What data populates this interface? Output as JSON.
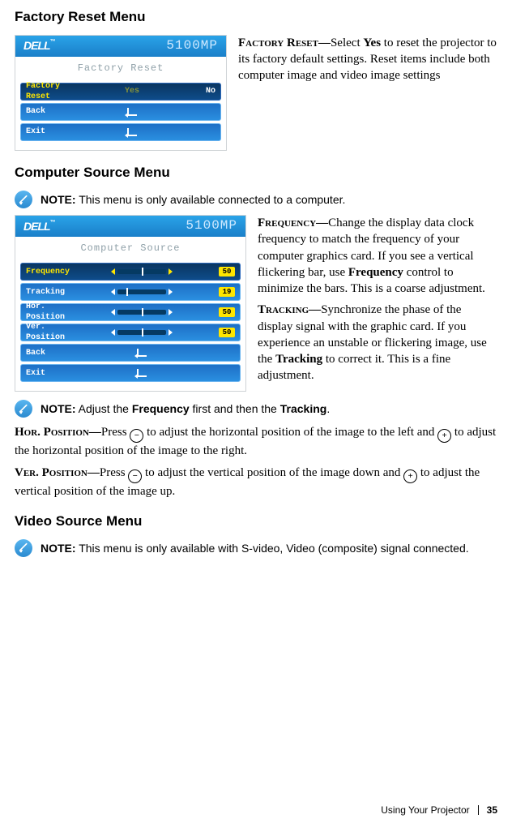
{
  "headings": {
    "factory_reset_menu": "Factory Reset Menu",
    "computer_source_menu": "Computer Source Menu",
    "video_source_menu": "Video Source Menu"
  },
  "projector": {
    "logo": "DELL",
    "model": "5100MP"
  },
  "factory_menu": {
    "title": "Factory Reset",
    "rows": {
      "reset": {
        "label": "Factory Reset",
        "yes": "Yes",
        "no": "No"
      },
      "back": "Back",
      "exit": "Exit"
    }
  },
  "computer_menu": {
    "title": "Computer Source",
    "rows": {
      "frequency": {
        "label": "Frequency",
        "value": "50",
        "slider_pos_pct": 50
      },
      "tracking": {
        "label": "Tracking",
        "value": "19",
        "slider_pos_pct": 19
      },
      "hor": {
        "label": "Hor. Position",
        "value": "50",
        "slider_pos_pct": 50
      },
      "ver": {
        "label": "Ver. Position",
        "value": "50",
        "slider_pos_pct": 50
      },
      "back": "Back",
      "exit": "Exit"
    }
  },
  "text": {
    "factory_reset_label": "Factory Reset—",
    "factory_reset_desc": "Select Yes to reset the projector to its factory default settings. Reset items include both computer image and video image settings",
    "factory_reset_desc_pre": "Select ",
    "factory_reset_desc_yes": "Yes",
    "factory_reset_desc_post": " to reset the projector to its factory default settings. Reset items include both computer image and video image settings",
    "note_label": "NOTE:",
    "note_computer": " This menu is only available connected to a computer.",
    "frequency_label": "Frequency—",
    "frequency_desc_1": "Change the display data clock frequency to match the frequency of your computer graphics card. If you see a vertical flickering bar, use ",
    "frequency_bold": "Frequency",
    "frequency_desc_2": " control to minimize the bars. This is a coarse adjustment.",
    "tracking_label": "Tracking—",
    "tracking_desc_1": "Synchronize the phase of the display signal with the graphic card. If you experience an unstable or flickering image, use the ",
    "tracking_bold": "Tracking",
    "tracking_desc_2": " to correct it. This is a fine adjustment.",
    "note_freq_track_1": " Adjust the ",
    "note_freq_track_freq": "Frequency",
    "note_freq_track_2": " first and then the ",
    "note_freq_track_track": "Tracking",
    "note_freq_track_3": ".",
    "hor_label": "Hor. Position—",
    "hor_1": "Press ",
    "hor_2": " to adjust the horizontal position of the image to the left and ",
    "hor_3": " to adjust the horizontal position of the image to the right.",
    "ver_label": "Ver. Position—",
    "ver_1": "Press ",
    "ver_2": " to adjust the vertical position of the image down and ",
    "ver_3": " to adjust the vertical position of the image up.",
    "note_video": " This menu is only available with S-video, Video (composite) signal connected."
  },
  "footer": {
    "section": "Using Your Projector",
    "page": "35"
  },
  "colors": {
    "header_blue": "#1a7fc9",
    "row_selected_bg": "#0e4c8a",
    "row_selected_text": "#ffe600",
    "row_blue_bg": "#2a8fe0",
    "row_blue_text": "#ffffff",
    "note_icon_bg": "#2a8ad0"
  }
}
